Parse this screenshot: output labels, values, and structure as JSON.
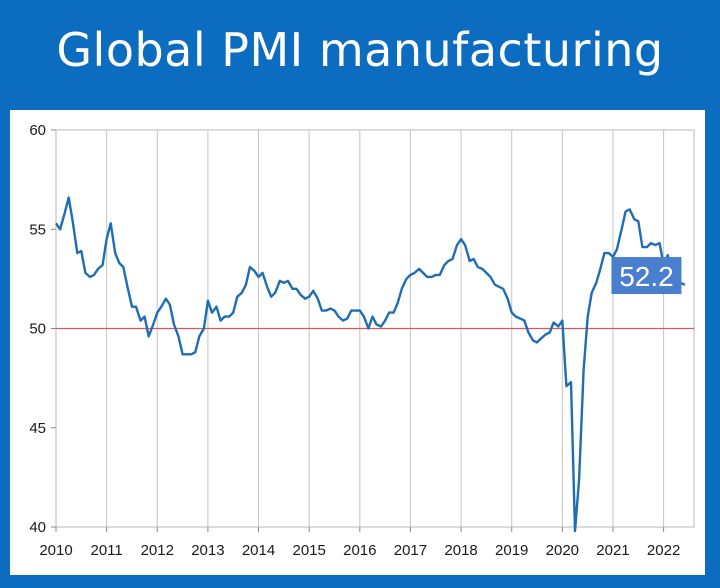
{
  "title": "Global PMI manufacturing",
  "chart_data": {
    "type": "line",
    "title": "Global PMI manufacturing",
    "xlabel": "",
    "ylabel": "",
    "xlim": [
      2010,
      2022.6
    ],
    "ylim": [
      40,
      60
    ],
    "yticks": [
      40,
      45,
      50,
      55,
      60
    ],
    "xticks": [
      "2010",
      "2011",
      "2012",
      "2013",
      "2014",
      "2015",
      "2016",
      "2017",
      "2018",
      "2019",
      "2020",
      "2021",
      "2022"
    ],
    "reference_line": {
      "y": 50,
      "color": "#d45a5a"
    },
    "grid": "vertical",
    "line_color": "#1f6db4",
    "callout": {
      "text": "52.2",
      "color": "#4a7fd0"
    },
    "series": [
      {
        "values": [
          [
            2010.0,
            55.3
          ],
          [
            2010.08,
            55.0
          ],
          [
            2010.17,
            55.8
          ],
          [
            2010.25,
            56.6
          ],
          [
            2010.33,
            55.4
          ],
          [
            2010.42,
            53.8
          ],
          [
            2010.5,
            53.9
          ],
          [
            2010.58,
            52.8
          ],
          [
            2010.67,
            52.6
          ],
          [
            2010.75,
            52.7
          ],
          [
            2010.83,
            53.0
          ],
          [
            2010.92,
            53.2
          ],
          [
            2011.0,
            54.5
          ],
          [
            2011.08,
            55.3
          ],
          [
            2011.17,
            53.8
          ],
          [
            2011.25,
            53.3
          ],
          [
            2011.33,
            53.1
          ],
          [
            2011.42,
            52.0
          ],
          [
            2011.5,
            51.1
          ],
          [
            2011.58,
            51.1
          ],
          [
            2011.67,
            50.4
          ],
          [
            2011.75,
            50.6
          ],
          [
            2011.83,
            49.6
          ],
          [
            2011.92,
            50.2
          ],
          [
            2012.0,
            50.8
          ],
          [
            2012.08,
            51.1
          ],
          [
            2012.17,
            51.5
          ],
          [
            2012.25,
            51.2
          ],
          [
            2012.33,
            50.2
          ],
          [
            2012.42,
            49.6
          ],
          [
            2012.5,
            48.7
          ],
          [
            2012.58,
            48.7
          ],
          [
            2012.67,
            48.7
          ],
          [
            2012.75,
            48.8
          ],
          [
            2012.83,
            49.6
          ],
          [
            2012.92,
            50.0
          ],
          [
            2013.0,
            51.4
          ],
          [
            2013.08,
            50.8
          ],
          [
            2013.17,
            51.1
          ],
          [
            2013.25,
            50.4
          ],
          [
            2013.33,
            50.6
          ],
          [
            2013.42,
            50.6
          ],
          [
            2013.5,
            50.8
          ],
          [
            2013.58,
            51.6
          ],
          [
            2013.67,
            51.8
          ],
          [
            2013.75,
            52.2
          ],
          [
            2013.83,
            53.1
          ],
          [
            2013.92,
            52.9
          ],
          [
            2014.0,
            52.6
          ],
          [
            2014.08,
            52.8
          ],
          [
            2014.17,
            52.1
          ],
          [
            2014.25,
            51.6
          ],
          [
            2014.33,
            51.8
          ],
          [
            2014.42,
            52.4
          ],
          [
            2014.5,
            52.3
          ],
          [
            2014.58,
            52.4
          ],
          [
            2014.67,
            52.0
          ],
          [
            2014.75,
            52.0
          ],
          [
            2014.83,
            51.7
          ],
          [
            2014.92,
            51.5
          ],
          [
            2015.0,
            51.6
          ],
          [
            2015.08,
            51.9
          ],
          [
            2015.17,
            51.5
          ],
          [
            2015.25,
            50.9
          ],
          [
            2015.33,
            50.9
          ],
          [
            2015.42,
            51.0
          ],
          [
            2015.5,
            50.9
          ],
          [
            2015.58,
            50.6
          ],
          [
            2015.67,
            50.4
          ],
          [
            2015.75,
            50.5
          ],
          [
            2015.83,
            50.9
          ],
          [
            2015.92,
            50.9
          ],
          [
            2016.0,
            50.9
          ],
          [
            2016.08,
            50.6
          ],
          [
            2016.17,
            50.0
          ],
          [
            2016.25,
            50.6
          ],
          [
            2016.33,
            50.2
          ],
          [
            2016.42,
            50.1
          ],
          [
            2016.5,
            50.4
          ],
          [
            2016.58,
            50.8
          ],
          [
            2016.67,
            50.8
          ],
          [
            2016.75,
            51.3
          ],
          [
            2016.83,
            52.0
          ],
          [
            2016.92,
            52.5
          ],
          [
            2017.0,
            52.7
          ],
          [
            2017.08,
            52.8
          ],
          [
            2017.17,
            53.0
          ],
          [
            2017.25,
            52.8
          ],
          [
            2017.33,
            52.6
          ],
          [
            2017.42,
            52.6
          ],
          [
            2017.5,
            52.7
          ],
          [
            2017.58,
            52.7
          ],
          [
            2017.67,
            53.2
          ],
          [
            2017.75,
            53.4
          ],
          [
            2017.83,
            53.5
          ],
          [
            2017.92,
            54.2
          ],
          [
            2018.0,
            54.5
          ],
          [
            2018.08,
            54.2
          ],
          [
            2018.17,
            53.4
          ],
          [
            2018.25,
            53.5
          ],
          [
            2018.33,
            53.1
          ],
          [
            2018.42,
            53.0
          ],
          [
            2018.5,
            52.8
          ],
          [
            2018.58,
            52.6
          ],
          [
            2018.67,
            52.2
          ],
          [
            2018.75,
            52.1
          ],
          [
            2018.83,
            52.0
          ],
          [
            2018.92,
            51.5
          ],
          [
            2019.0,
            50.8
          ],
          [
            2019.08,
            50.6
          ],
          [
            2019.17,
            50.5
          ],
          [
            2019.25,
            50.4
          ],
          [
            2019.33,
            49.8
          ],
          [
            2019.42,
            49.4
          ],
          [
            2019.5,
            49.3
          ],
          [
            2019.58,
            49.5
          ],
          [
            2019.67,
            49.7
          ],
          [
            2019.75,
            49.8
          ],
          [
            2019.83,
            50.3
          ],
          [
            2019.92,
            50.1
          ],
          [
            2020.0,
            50.4
          ],
          [
            2020.08,
            47.1
          ],
          [
            2020.17,
            47.3
          ],
          [
            2020.25,
            39.8
          ],
          [
            2020.33,
            42.4
          ],
          [
            2020.42,
            47.9
          ],
          [
            2020.5,
            50.6
          ],
          [
            2020.58,
            51.8
          ],
          [
            2020.67,
            52.3
          ],
          [
            2020.75,
            53.0
          ],
          [
            2020.83,
            53.8
          ],
          [
            2020.92,
            53.8
          ],
          [
            2021.0,
            53.6
          ],
          [
            2021.08,
            54.0
          ],
          [
            2021.17,
            55.0
          ],
          [
            2021.25,
            55.9
          ],
          [
            2021.33,
            56.0
          ],
          [
            2021.42,
            55.5
          ],
          [
            2021.5,
            55.4
          ],
          [
            2021.58,
            54.1
          ],
          [
            2021.67,
            54.1
          ],
          [
            2021.75,
            54.3
          ],
          [
            2021.83,
            54.2
          ],
          [
            2021.92,
            54.3
          ],
          [
            2022.0,
            53.2
          ],
          [
            2022.08,
            53.7
          ],
          [
            2022.17,
            52.9
          ],
          [
            2022.25,
            52.3
          ],
          [
            2022.33,
            52.3
          ],
          [
            2022.42,
            52.2
          ]
        ]
      }
    ]
  }
}
